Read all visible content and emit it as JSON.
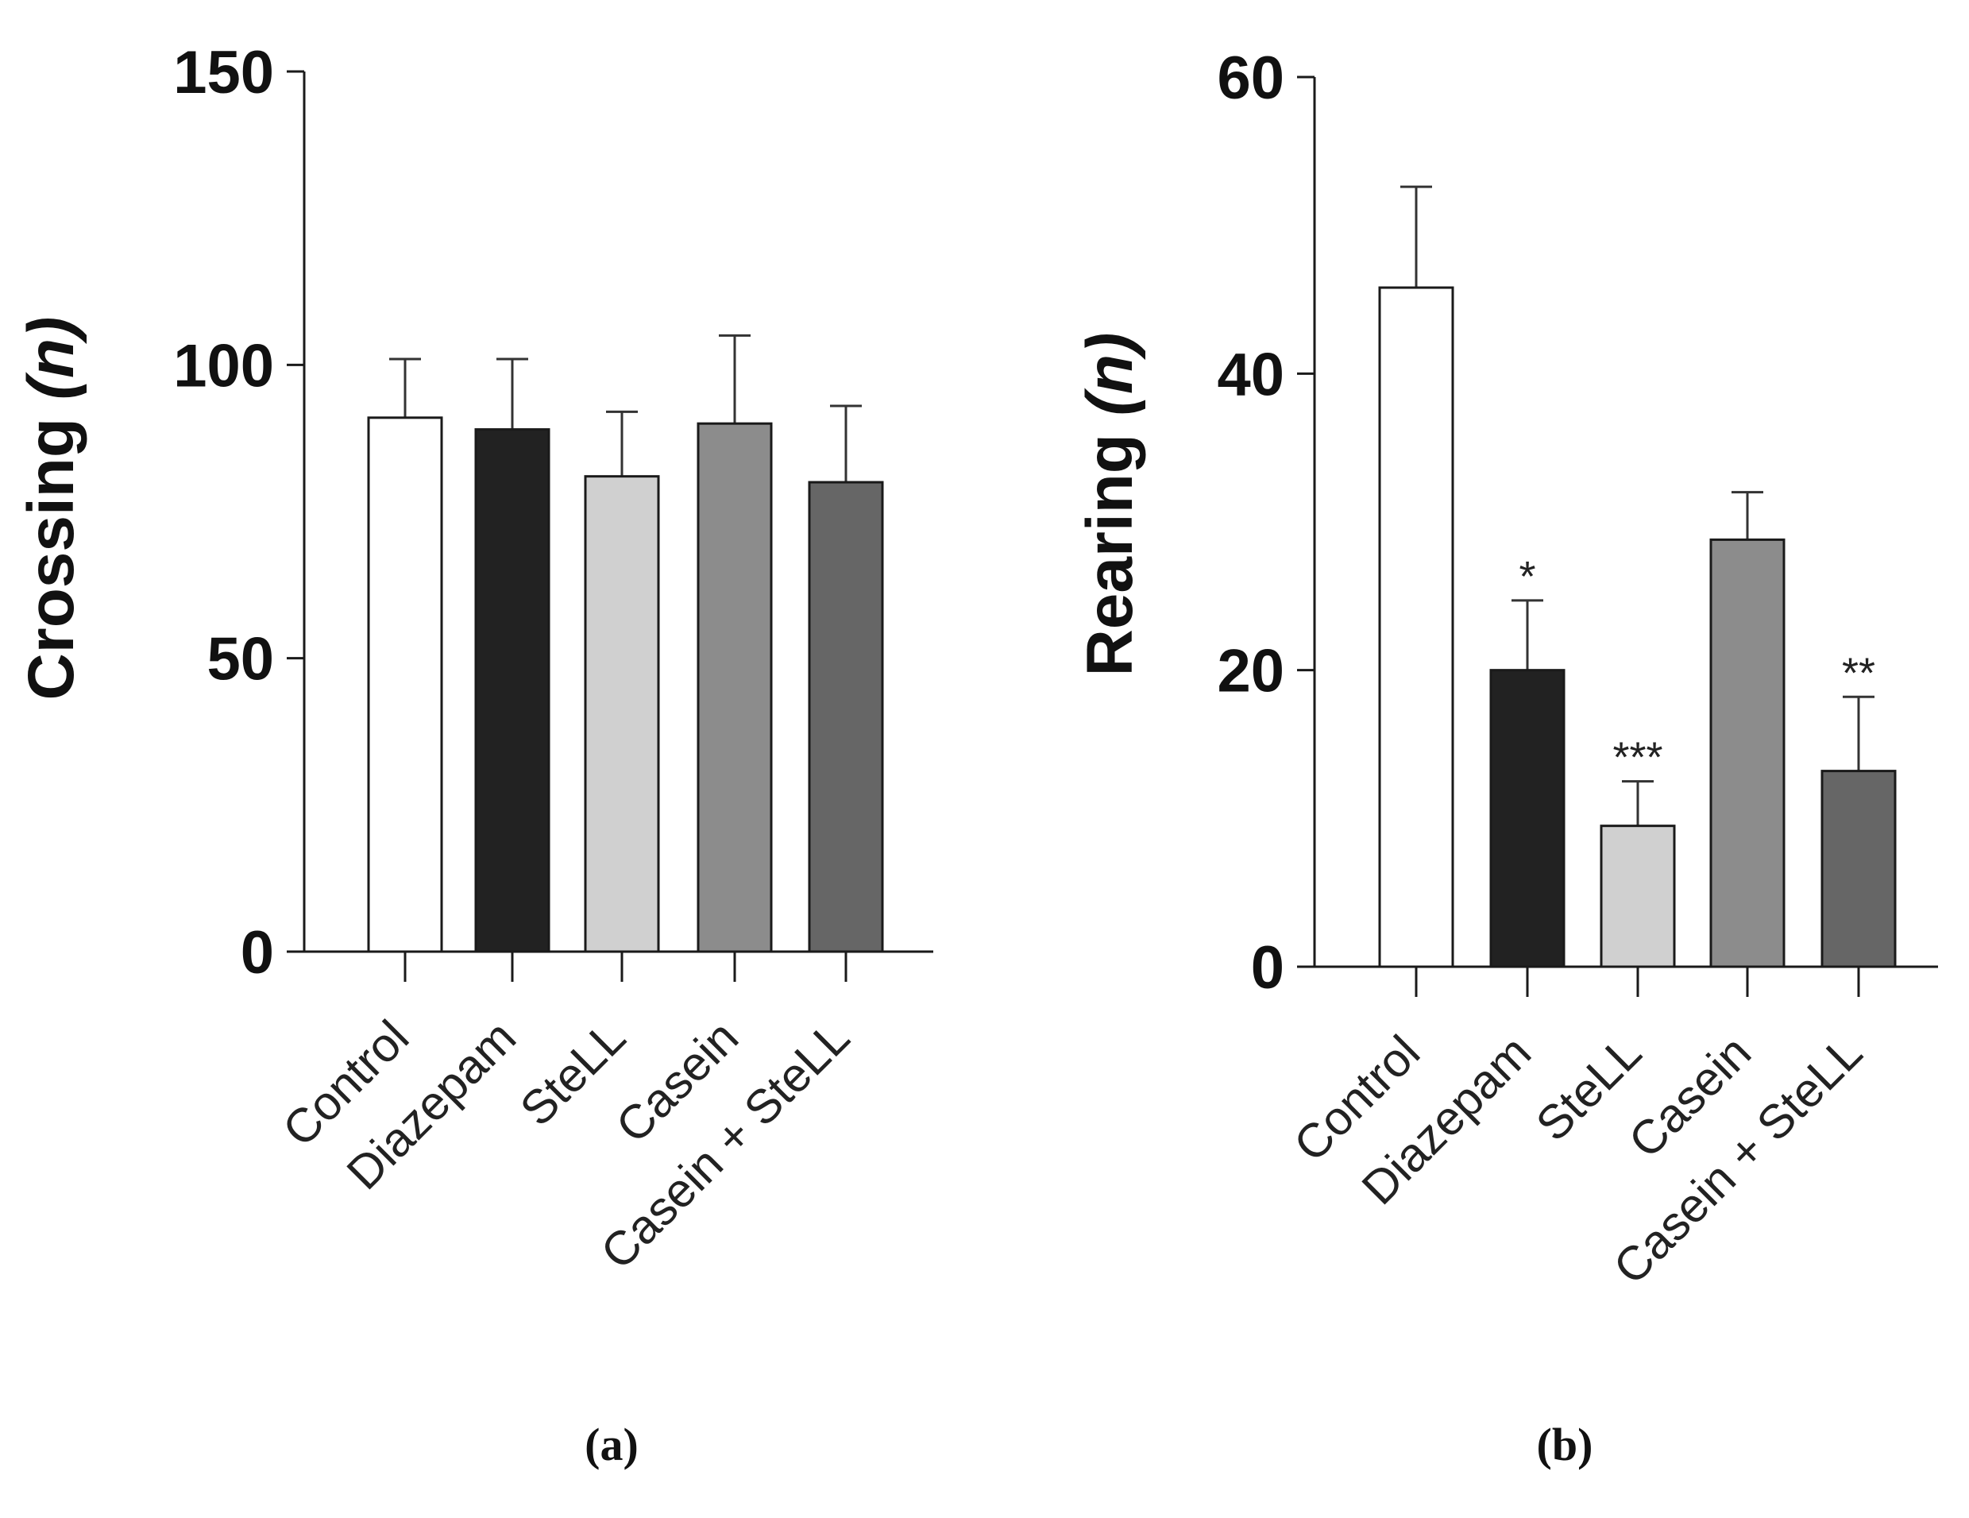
{
  "chart_data": [
    {
      "type": "bar",
      "panel_label": "(a)",
      "ylabel": "Crossing",
      "ylabel_unit": "(n)",
      "ylim": [
        0,
        150
      ],
      "yticks": [
        "0",
        "50",
        "100",
        "150"
      ],
      "categories": [
        "Control",
        "Diazepam",
        "SteLL",
        "Casein",
        "Casein + SteLL"
      ],
      "values": [
        91,
        89,
        81,
        90,
        80
      ],
      "errors": [
        10,
        12,
        11,
        15,
        13
      ],
      "significance": [
        "",
        "",
        "",
        "",
        ""
      ],
      "bar_colors": [
        "#ffffff",
        "#222222",
        "#d0d0d0",
        "#8c8c8c",
        "#666666"
      ]
    },
    {
      "type": "bar",
      "panel_label": "(b)",
      "ylabel": "Rearing",
      "ylabel_unit": "(n)",
      "ylim": [
        0,
        60
      ],
      "yticks": [
        "0",
        "20",
        "40",
        "60"
      ],
      "categories": [
        "Control",
        "Diazepam",
        "SteLL",
        "Casein",
        "Casein + SteLL"
      ],
      "values": [
        45.8,
        20,
        9.5,
        28.8,
        13.2
      ],
      "errors": [
        6.8,
        4.7,
        3,
        3.2,
        5
      ],
      "significance": [
        "",
        "*",
        "***",
        "",
        "**"
      ],
      "bar_colors": [
        "#ffffff",
        "#222222",
        "#d0d0d0",
        "#8c8c8c",
        "#666666"
      ]
    }
  ]
}
